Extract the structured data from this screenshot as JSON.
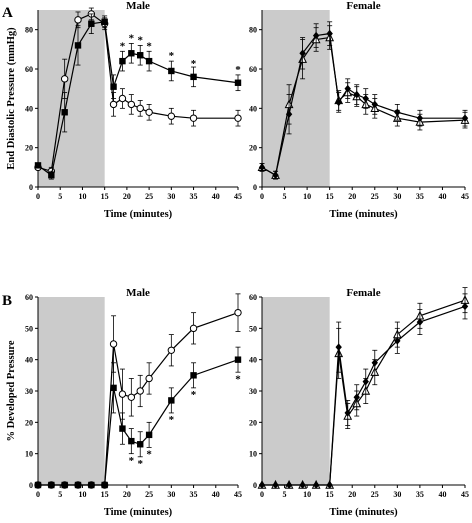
{
  "figure": {
    "panel_a_label": "A",
    "panel_b_label": "B"
  },
  "chart_data": [
    {
      "id": "A-male",
      "type": "line",
      "title": "Male",
      "xlabel": "Time (minutes)",
      "ylabel": "End Diastolic Pressure (mmHg)",
      "xlim": [
        0,
        45
      ],
      "ylim": [
        0,
        90
      ],
      "xticks": [
        0,
        5,
        10,
        15,
        20,
        25,
        30,
        35,
        40,
        45
      ],
      "yticks": [
        0,
        20,
        40,
        60,
        80
      ],
      "shaded_interval": [
        0,
        15
      ],
      "series": [
        {
          "marker": "open-circle",
          "x": [
            0,
            3,
            6,
            9,
            12,
            15,
            17,
            19,
            21,
            23,
            25,
            30,
            35,
            45
          ],
          "y": [
            10,
            8,
            55,
            85,
            88,
            83,
            42,
            45,
            42,
            40,
            38,
            36,
            35,
            35
          ],
          "err": [
            1,
            2,
            10,
            4,
            3,
            3,
            6,
            5,
            5,
            4,
            4,
            4,
            4,
            4
          ]
        },
        {
          "marker": "filled-square",
          "x": [
            0,
            3,
            6,
            9,
            12,
            15,
            17,
            19,
            21,
            23,
            25,
            30,
            35,
            45
          ],
          "y": [
            11,
            6,
            38,
            72,
            83,
            84,
            51,
            64,
            68,
            67,
            64,
            59,
            56,
            53
          ],
          "err": [
            1,
            2,
            10,
            10,
            5,
            3,
            6,
            5,
            5,
            5,
            5,
            5,
            5,
            4
          ]
        }
      ],
      "annotations": [
        {
          "text": "*",
          "x": 19,
          "y": 72
        },
        {
          "text": "*",
          "x": 21,
          "y": 76
        },
        {
          "text": "*",
          "x": 23,
          "y": 75
        },
        {
          "text": "*",
          "x": 25,
          "y": 72
        },
        {
          "text": "*",
          "x": 30,
          "y": 67
        },
        {
          "text": "*",
          "x": 35,
          "y": 63
        },
        {
          "text": "*",
          "x": 45,
          "y": 60
        }
      ]
    },
    {
      "id": "A-female",
      "type": "line",
      "title": "Female",
      "xlabel": "Time (minutes)",
      "ylabel": "",
      "xlim": [
        0,
        45
      ],
      "ylim": [
        0,
        90
      ],
      "xticks": [
        0,
        5,
        10,
        15,
        20,
        25,
        30,
        35,
        40,
        45
      ],
      "yticks": [
        0,
        20,
        40,
        60,
        80
      ],
      "shaded_interval": [
        0,
        15
      ],
      "series": [
        {
          "marker": "open-triangle",
          "x": [
            0,
            3,
            6,
            9,
            12,
            15,
            17,
            19,
            21,
            23,
            25,
            30,
            35,
            45
          ],
          "y": [
            10,
            6,
            42,
            65,
            75,
            76,
            44,
            48,
            46,
            42,
            40,
            35,
            33,
            34
          ],
          "err": [
            2,
            2,
            10,
            10,
            6,
            6,
            5,
            5,
            5,
            5,
            5,
            4,
            4,
            4
          ]
        },
        {
          "marker": "filled-diamond",
          "x": [
            0,
            3,
            6,
            9,
            12,
            15,
            17,
            19,
            21,
            23,
            25,
            30,
            35,
            45
          ],
          "y": [
            10,
            6,
            37,
            68,
            77,
            78,
            43,
            50,
            47,
            45,
            42,
            38,
            35,
            35
          ],
          "err": [
            2,
            2,
            10,
            8,
            6,
            6,
            5,
            5,
            5,
            5,
            5,
            4,
            4,
            4
          ]
        }
      ],
      "annotations": []
    },
    {
      "id": "B-male",
      "type": "line",
      "title": "Male",
      "xlabel": "Time (minutes)",
      "ylabel": "% Developed Pressure",
      "xlim": [
        0,
        45
      ],
      "ylim": [
        0,
        60
      ],
      "xticks": [
        0,
        5,
        10,
        15,
        20,
        25,
        30,
        35,
        40,
        45
      ],
      "yticks": [
        0,
        10,
        20,
        30,
        40,
        50,
        60
      ],
      "shaded_interval": [
        0,
        15
      ],
      "series": [
        {
          "marker": "open-circle",
          "x": [
            0,
            3,
            6,
            9,
            12,
            15,
            17,
            19,
            21,
            23,
            25,
            30,
            35,
            45
          ],
          "y": [
            0,
            0,
            0,
            0,
            0,
            0,
            45,
            29,
            28,
            30,
            34,
            43,
            50,
            55
          ],
          "err": [
            0,
            0,
            0,
            0,
            0,
            0,
            9,
            8,
            6,
            5,
            5,
            5,
            5,
            6
          ]
        },
        {
          "marker": "filled-square",
          "x": [
            0,
            3,
            6,
            9,
            12,
            15,
            17,
            19,
            21,
            23,
            25,
            30,
            35,
            45
          ],
          "y": [
            0,
            0,
            0,
            0,
            0,
            0,
            31,
            18,
            14,
            13,
            16,
            27,
            35,
            40
          ],
          "err": [
            0,
            0,
            0,
            0,
            0,
            0,
            8,
            5,
            4,
            4,
            4,
            4,
            4,
            4
          ]
        }
      ],
      "annotations": [
        {
          "text": "*",
          "x": 21,
          "y": 8
        },
        {
          "text": "*",
          "x": 23,
          "y": 7
        },
        {
          "text": "*",
          "x": 25,
          "y": 10
        },
        {
          "text": "*",
          "x": 30,
          "y": 21
        },
        {
          "text": "*",
          "x": 35,
          "y": 29
        },
        {
          "text": "*",
          "x": 45,
          "y": 34
        }
      ]
    },
    {
      "id": "B-female",
      "type": "line",
      "title": "Female",
      "xlabel": "Time (minutes)",
      "ylabel": "",
      "xlim": [
        0,
        45
      ],
      "ylim": [
        0,
        60
      ],
      "xticks": [
        0,
        5,
        10,
        15,
        20,
        25,
        30,
        35,
        40,
        45
      ],
      "yticks": [
        0,
        10,
        20,
        30,
        40,
        50,
        60
      ],
      "shaded_interval": [
        0,
        15
      ],
      "series": [
        {
          "marker": "open-triangle",
          "x": [
            0,
            3,
            6,
            9,
            12,
            15,
            17,
            19,
            21,
            23,
            25,
            30,
            35,
            45
          ],
          "y": [
            0,
            0,
            0,
            0,
            0,
            0,
            42,
            22,
            26,
            30,
            36,
            48,
            54,
            59
          ],
          "err": [
            0,
            0,
            0,
            0,
            0,
            0,
            8,
            4,
            4,
            4,
            4,
            4,
            4,
            4
          ]
        },
        {
          "marker": "filled-diamond",
          "x": [
            0,
            3,
            6,
            9,
            12,
            15,
            17,
            19,
            21,
            23,
            25,
            30,
            35,
            45
          ],
          "y": [
            0,
            0,
            0,
            0,
            0,
            0,
            44,
            23,
            28,
            33,
            39,
            46,
            52,
            57
          ],
          "err": [
            0,
            0,
            0,
            0,
            0,
            0,
            8,
            4,
            4,
            4,
            4,
            4,
            4,
            4
          ]
        }
      ],
      "annotations": []
    }
  ]
}
